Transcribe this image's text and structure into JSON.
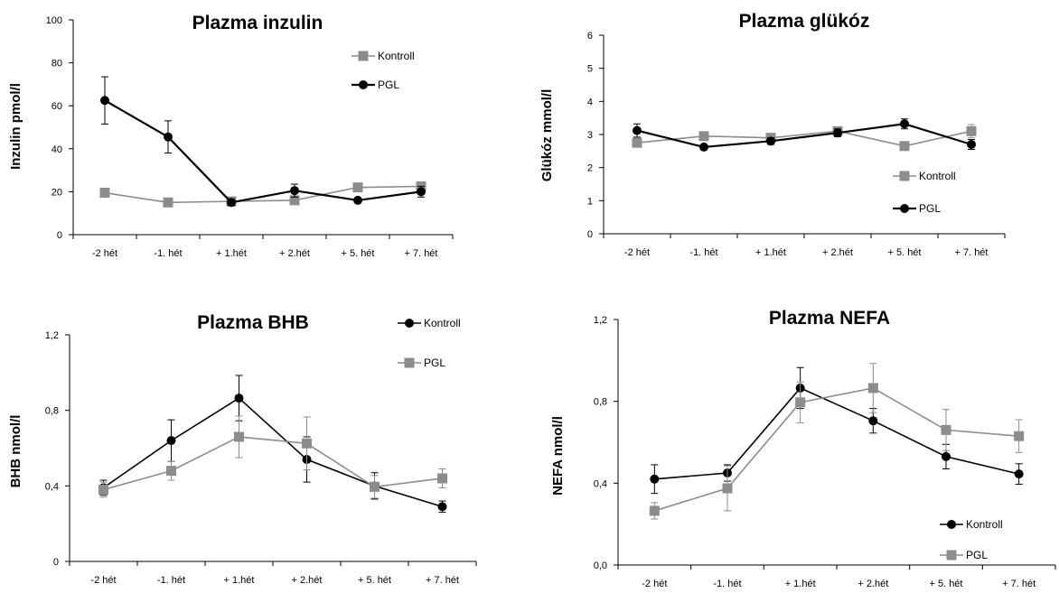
{
  "figure": {
    "categories": [
      "-2 hét",
      "-1. hét",
      "+ 1.hét",
      "+ 2.hét",
      "+ 5. hét",
      "+ 7. hét"
    ]
  },
  "chart_data": [
    {
      "id": "insulin",
      "type": "line",
      "title": "Plazma inzulin",
      "xlabel": "",
      "ylabel": "Inzulin pmol/l",
      "categories": [
        "-2 hét",
        "-1. hét",
        "+ 1.hét",
        "+ 2.hét",
        "+ 5. hét",
        "+ 7. hét"
      ],
      "ylim": [
        0,
        100
      ],
      "yticks": [
        "0",
        "20",
        "40",
        "60",
        "80",
        "100"
      ],
      "grid": false,
      "legend_position": "top-right",
      "series": [
        {
          "name": "Kontroll",
          "color": "#8c8c8c",
          "marker": "square",
          "values": [
            19.5,
            15,
            15.5,
            16,
            22,
            22.5
          ],
          "errors": [
            2,
            0,
            1,
            0,
            0,
            0
          ]
        },
        {
          "name": "PGL",
          "color": "#000000",
          "marker": "circle",
          "values": [
            62.5,
            45.5,
            15,
            20.5,
            16,
            20
          ],
          "errors": [
            11,
            7.5,
            1.5,
            3,
            0,
            2.5
          ]
        }
      ]
    },
    {
      "id": "glucose",
      "type": "line",
      "title": "Plazma glükóz",
      "xlabel": "",
      "ylabel": "Glükóz mmol/l",
      "categories": [
        "-2 hét",
        "-1. hét",
        "+ 1.hét",
        "+ 2.hét",
        "+ 5. hét",
        "+ 7. hét"
      ],
      "ylim": [
        0,
        6
      ],
      "yticks": [
        "0",
        "1",
        "2",
        "3",
        "4",
        "5",
        "6"
      ],
      "grid": false,
      "legend_position": "bottom-right",
      "series": [
        {
          "name": "Kontroll",
          "color": "#8c8c8c",
          "marker": "square",
          "values": [
            2.75,
            2.95,
            2.9,
            3.1,
            2.65,
            3.1
          ],
          "errors": [
            0,
            0,
            0,
            0,
            0,
            0.2
          ]
        },
        {
          "name": "PGL",
          "color": "#000000",
          "marker": "circle",
          "values": [
            3.12,
            2.62,
            2.8,
            3.05,
            3.32,
            2.7
          ],
          "errors": [
            0.2,
            0,
            0.1,
            0.12,
            0.15,
            0.15
          ]
        }
      ]
    },
    {
      "id": "bhb",
      "type": "line",
      "title": "Plazma BHB",
      "xlabel": "",
      "ylabel": "BHB nmol/l",
      "categories": [
        "-2 hét",
        "-1. hét",
        "+ 1.hét",
        "+ 2.hét",
        "+ 5. hét",
        "+ 7. hét"
      ],
      "ylim": [
        0,
        1.2
      ],
      "yticks": [
        "0",
        "0,4",
        "0,8",
        "1,2"
      ],
      "grid": false,
      "legend_position": "top-right",
      "series": [
        {
          "name": "Kontroll",
          "color": "#000000",
          "marker": "circle",
          "values": [
            0.39,
            0.64,
            0.865,
            0.54,
            0.4,
            0.29
          ],
          "errors": [
            0.04,
            0.11,
            0.12,
            0.12,
            0.07,
            0.03
          ]
        },
        {
          "name": "PGL",
          "color": "#8c8c8c",
          "marker": "square",
          "values": [
            0.38,
            0.48,
            0.66,
            0.625,
            0.395,
            0.44
          ],
          "errors": [
            0.04,
            0.05,
            0.11,
            0.14,
            0.06,
            0.05
          ]
        }
      ]
    },
    {
      "id": "nefa",
      "type": "line",
      "title": "Plazma NEFA",
      "xlabel": "",
      "ylabel": "NEFA nmol/l",
      "categories": [
        "-2 hét",
        "-1. hét",
        "+ 1.hét",
        "+ 2.hét",
        "+ 5. hét",
        "+ 7. hét"
      ],
      "ylim": [
        0,
        1.2
      ],
      "yticks": [
        "0,0",
        "0,4",
        "0,8",
        "1,2"
      ],
      "grid": false,
      "legend_position": "bottom-right",
      "series": [
        {
          "name": "Kontroll",
          "color": "#000000",
          "marker": "circle",
          "values": [
            0.42,
            0.45,
            0.865,
            0.705,
            0.53,
            0.445
          ],
          "errors": [
            0.07,
            0.04,
            0.1,
            0.06,
            0.06,
            0.05
          ]
        },
        {
          "name": "PGL",
          "color": "#8c8c8c",
          "marker": "square",
          "values": [
            0.265,
            0.375,
            0.795,
            0.865,
            0.66,
            0.63
          ],
          "errors": [
            0.04,
            0.11,
            0.1,
            0.12,
            0.1,
            0.08
          ]
        }
      ]
    }
  ]
}
